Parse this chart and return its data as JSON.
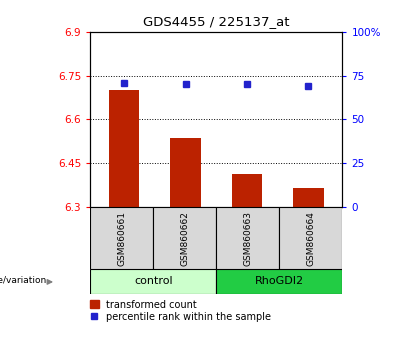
{
  "title": "GDS4455 / 225137_at",
  "samples": [
    "GSM860661",
    "GSM860662",
    "GSM860663",
    "GSM860664"
  ],
  "groups": [
    "control",
    "control",
    "RhoGDI2",
    "RhoGDI2"
  ],
  "transformed_counts": [
    6.7,
    6.535,
    6.415,
    6.365
  ],
  "percentile_ranks": [
    71,
    70,
    70,
    69
  ],
  "ylim_left": [
    6.3,
    6.9
  ],
  "ylim_right": [
    0,
    100
  ],
  "yticks_left": [
    6.3,
    6.45,
    6.6,
    6.75,
    6.9
  ],
  "yticks_right": [
    0,
    25,
    50,
    75,
    100
  ],
  "ytick_labels_left": [
    "6.3",
    "6.45",
    "6.6",
    "6.75",
    "6.9"
  ],
  "ytick_labels_right": [
    "0",
    "25",
    "50",
    "75",
    "100%"
  ],
  "grid_lines": [
    6.45,
    6.6,
    6.75
  ],
  "bar_color": "#bb2200",
  "dot_color": "#2222cc",
  "bar_bottom": 6.3,
  "bar_width": 0.5,
  "group_label": "genotype/variation",
  "group_colors": {
    "control": "#ccffcc",
    "RhoGDI2": "#22cc44"
  },
  "legend_bar_label": "transformed count",
  "legend_dot_label": "percentile rank within the sample",
  "sample_area_color": "#d8d8d8",
  "x_positions": [
    0,
    1,
    2,
    3
  ],
  "xlim": [
    -0.55,
    3.55
  ]
}
